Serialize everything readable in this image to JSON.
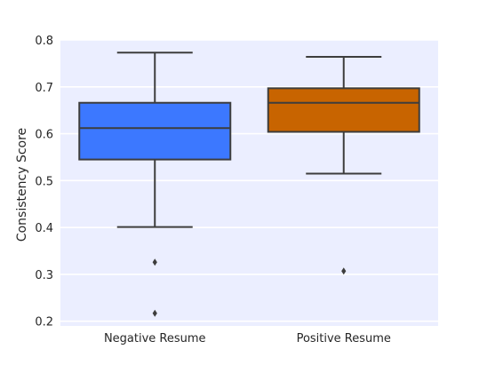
{
  "chart_data": {
    "type": "box",
    "title": "",
    "xlabel": "",
    "ylabel": "Consistency Score",
    "ylim": [
      0.19,
      0.8
    ],
    "yticks": [
      0.2,
      0.3,
      0.4,
      0.5,
      0.6,
      0.7,
      0.8
    ],
    "ytick_labels": [
      "0.2",
      "0.3",
      "0.4",
      "0.5",
      "0.6",
      "0.7",
      "0.8"
    ],
    "grid": true,
    "background": "#EBEEFF",
    "categories": [
      "Negative Resume",
      "Positive Resume"
    ],
    "boxes": [
      {
        "category": "Negative Resume",
        "color": "#3C78FF",
        "whisker_low": 0.401,
        "q1": 0.545,
        "median": 0.612,
        "q3": 0.666,
        "whisker_high": 0.773,
        "outliers": [
          0.326,
          0.217
        ]
      },
      {
        "category": "Positive Resume",
        "color": "#C86400",
        "whisker_low": 0.515,
        "q1": 0.604,
        "median": 0.666,
        "q3": 0.697,
        "whisker_high": 0.764,
        "outliers": [
          0.307
        ]
      }
    ]
  }
}
